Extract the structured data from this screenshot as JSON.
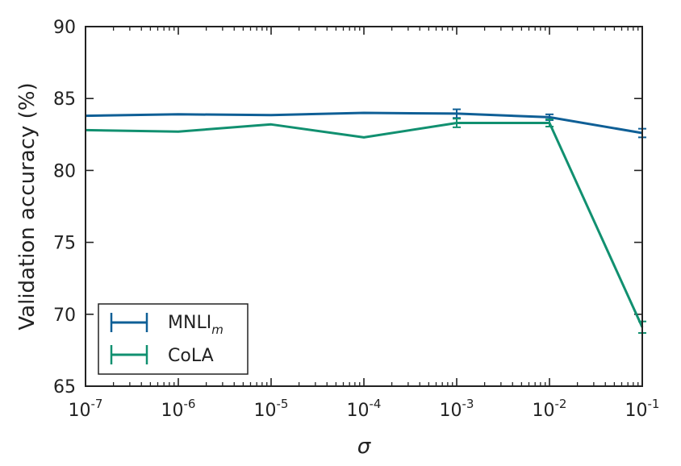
{
  "chart_data": {
    "type": "line",
    "xscale": "log",
    "x_ticks": [
      {
        "value": 1e-07,
        "base": "10",
        "exp": "-7"
      },
      {
        "value": 1e-06,
        "base": "10",
        "exp": "-6"
      },
      {
        "value": 1e-05,
        "base": "10",
        "exp": "-5"
      },
      {
        "value": 0.0001,
        "base": "10",
        "exp": "-4"
      },
      {
        "value": 0.001,
        "base": "10",
        "exp": "-3"
      },
      {
        "value": 0.01,
        "base": "10",
        "exp": "-2"
      },
      {
        "value": 0.1,
        "base": "10",
        "exp": "-1"
      }
    ],
    "xlim": [
      1e-07,
      0.1
    ],
    "ylim": [
      65,
      90
    ],
    "y_ticks": [
      65,
      70,
      75,
      80,
      85,
      90
    ],
    "xlabel": "σ",
    "ylabel": "Validation accuracy (%)",
    "legend_position": "lower-left",
    "series": [
      {
        "name": "MNLI",
        "name_subscript": "m",
        "color": "#0f5f96",
        "x": [
          1e-07,
          1e-06,
          1e-05,
          0.0001,
          0.001,
          0.01,
          0.1
        ],
        "values": [
          83.8,
          83.9,
          83.85,
          84.0,
          83.95,
          83.7,
          82.6
        ],
        "errors": [
          0,
          0,
          0,
          0,
          0.3,
          0.2,
          0.3
        ]
      },
      {
        "name": "CoLA",
        "name_subscript": "",
        "color": "#119070",
        "x": [
          1e-07,
          1e-06,
          1e-05,
          0.0001,
          0.001,
          0.01,
          0.1
        ],
        "values": [
          82.8,
          82.7,
          83.2,
          82.3,
          83.3,
          83.3,
          69.1
        ],
        "errors": [
          0,
          0,
          0,
          0,
          0.3,
          0.25,
          0.4
        ]
      }
    ]
  }
}
